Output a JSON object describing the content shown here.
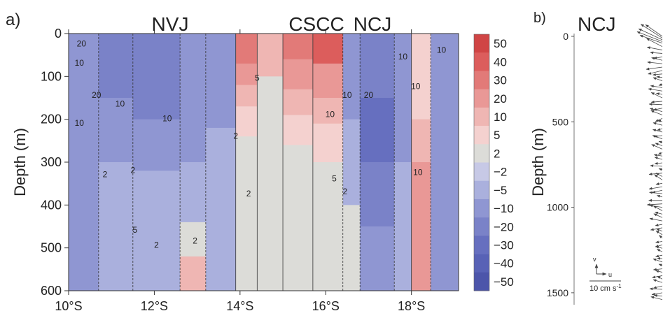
{
  "panel_a": {
    "label": "a)",
    "top_labels": [
      "NVJ",
      "CSCC",
      "NCJ"
    ],
    "colorbar_labels": [
      "50",
      "40",
      "30",
      "20",
      "10",
      "5",
      "2",
      "−2",
      "−5",
      "−10",
      "−20",
      "−30",
      "−40",
      "−50"
    ],
    "colorbar_colors": [
      "#d04545",
      "#dc5d5c",
      "#e27a78",
      "#e99896",
      "#efb6b3",
      "#f4d1cf",
      "#dcdcd8",
      "#c7c9e6",
      "#aab0dd",
      "#8f96d2",
      "#7a82c8",
      "#666fbf",
      "#5862b6",
      "#4c55aa"
    ],
    "contour_labels": [
      {
        "text": "20",
        "x": 10.3,
        "y": 30
      },
      {
        "text": "10",
        "x": 10.25,
        "y": 75
      },
      {
        "text": "20",
        "x": 10.65,
        "y": 150
      },
      {
        "text": "10",
        "x": 10.25,
        "y": 215
      },
      {
        "text": "10",
        "x": 11.2,
        "y": 170
      },
      {
        "text": "10",
        "x": 12.3,
        "y": 205
      },
      {
        "text": "2",
        "x": 10.85,
        "y": 335
      },
      {
        "text": "2",
        "x": 11.5,
        "y": 325
      },
      {
        "text": "5",
        "x": 11.55,
        "y": 465
      },
      {
        "text": "2",
        "x": 12.05,
        "y": 500
      },
      {
        "text": "2",
        "x": 12.95,
        "y": 490
      },
      {
        "text": "5",
        "x": 14.4,
        "y": 110
      },
      {
        "text": "2",
        "x": 13.9,
        "y": 245
      },
      {
        "text": "2",
        "x": 14.2,
        "y": 380
      },
      {
        "text": "5",
        "x": 16.2,
        "y": 345
      },
      {
        "text": "2",
        "x": 16.45,
        "y": 375
      },
      {
        "text": "10",
        "x": 16.5,
        "y": 150
      },
      {
        "text": "20",
        "x": 17.0,
        "y": 150
      },
      {
        "text": "10",
        "x": 16.1,
        "y": 195
      },
      {
        "text": "10",
        "x": 17.8,
        "y": 60
      },
      {
        "text": "10",
        "x": 18.1,
        "y": 130
      },
      {
        "text": "10",
        "x": 18.15,
        "y": 330
      },
      {
        "text": "10",
        "x": 18.7,
        "y": 45
      }
    ]
  },
  "panel_b": {
    "label": "b)",
    "top_label": "NCJ",
    "scale_v_label": "v",
    "scale_u_label": "u",
    "scale_text": "10 cm s",
    "scale_exponent": "-1"
  },
  "chart_data": [
    {
      "type": "heatmap",
      "panel": "a",
      "ylabel": "Depth (m)",
      "x_ticks": [
        "10°S",
        "12°S",
        "14°S",
        "16°S",
        "18°S"
      ],
      "x_tick_values": [
        10,
        12,
        14,
        16,
        18
      ],
      "y_ticks": [
        "0",
        "100",
        "200",
        "300",
        "400",
        "500",
        "600"
      ],
      "y_tick_values": [
        0,
        100,
        200,
        300,
        400,
        500,
        600
      ],
      "xlim": [
        10,
        19.1
      ],
      "ylim": [
        600,
        0
      ],
      "colorbar_levels": [
        50,
        40,
        30,
        20,
        10,
        5,
        2,
        -2,
        -5,
        -10,
        -20,
        -30,
        -40,
        -50
      ],
      "bands": [
        {
          "x0": 10.0,
          "x1": 10.7,
          "profile": [
            [
              0,
              -10
            ],
            [
              600,
              -10
            ]
          ]
        },
        {
          "x0": 10.7,
          "x1": 11.5,
          "profile": [
            [
              0,
              -20
            ],
            [
              150,
              -10
            ],
            [
              300,
              -5
            ],
            [
              600,
              -5
            ]
          ]
        },
        {
          "x0": 11.5,
          "x1": 12.6,
          "profile": [
            [
              0,
              -20
            ],
            [
              200,
              -10
            ],
            [
              320,
              -5
            ],
            [
              600,
              -5
            ]
          ]
        },
        {
          "x0": 12.6,
          "x1": 13.2,
          "profile": [
            [
              0,
              -10
            ],
            [
              300,
              -5
            ],
            [
              440,
              2
            ],
            [
              520,
              10
            ],
            [
              600,
              10
            ]
          ]
        },
        {
          "x0": 13.2,
          "x1": 13.9,
          "profile": [
            [
              0,
              -10
            ],
            [
              220,
              -5
            ],
            [
              450,
              -5
            ],
            [
              600,
              -2
            ]
          ]
        },
        {
          "x0": 13.9,
          "x1": 14.4,
          "profile": [
            [
              0,
              30
            ],
            [
              70,
              20
            ],
            [
              120,
              10
            ],
            [
              170,
              5
            ],
            [
              240,
              2
            ],
            [
              600,
              2
            ]
          ]
        },
        {
          "x0": 14.4,
          "x1": 15.0,
          "profile": [
            [
              0,
              10
            ],
            [
              100,
              2
            ],
            [
              330,
              2
            ],
            [
              600,
              -2
            ]
          ]
        },
        {
          "x0": 15.0,
          "x1": 15.7,
          "profile": [
            [
              0,
              30
            ],
            [
              60,
              20
            ],
            [
              130,
              10
            ],
            [
              190,
              5
            ],
            [
              260,
              2
            ],
            [
              600,
              2
            ]
          ]
        },
        {
          "x0": 15.7,
          "x1": 16.4,
          "profile": [
            [
              0,
              40
            ],
            [
              70,
              20
            ],
            [
              150,
              10
            ],
            [
              210,
              5
            ],
            [
              300,
              2
            ],
            [
              600,
              2
            ]
          ]
        },
        {
          "x0": 16.4,
          "x1": 16.8,
          "profile": [
            [
              0,
              -10
            ],
            [
              200,
              -5
            ],
            [
              400,
              2
            ],
            [
              600,
              2
            ]
          ]
        },
        {
          "x0": 16.8,
          "x1": 17.6,
          "profile": [
            [
              0,
              -20
            ],
            [
              150,
              -30
            ],
            [
              300,
              -20
            ],
            [
              450,
              -10
            ],
            [
              600,
              -10
            ]
          ]
        },
        {
          "x0": 17.6,
          "x1": 18.0,
          "profile": [
            [
              0,
              -10
            ],
            [
              300,
              -5
            ],
            [
              600,
              -5
            ]
          ]
        },
        {
          "x0": 18.0,
          "x1": 18.45,
          "profile": [
            [
              0,
              5
            ],
            [
              200,
              10
            ],
            [
              300,
              20
            ],
            [
              600,
              20
            ]
          ]
        },
        {
          "x0": 18.45,
          "x1": 19.1,
          "profile": [
            [
              0,
              -10
            ],
            [
              300,
              -10
            ],
            [
              600,
              -10
            ]
          ]
        }
      ]
    },
    {
      "type": "scatter",
      "panel": "b",
      "ylabel": "Depth (m)",
      "y_ticks": [
        "0",
        "500",
        "1000",
        "1500"
      ],
      "y_tick_values": [
        0,
        500,
        1000,
        1500
      ],
      "ylim": [
        1570,
        0
      ],
      "scale_arrow_cm_s": 10,
      "velocity_vectors": [
        {
          "depth": 0,
          "u": -5.3,
          "v": 3.7
        },
        {
          "depth": 10,
          "u": -6.8,
          "v": 4.4
        },
        {
          "depth": 20,
          "u": -7.5,
          "v": 3.5
        },
        {
          "depth": 30,
          "u": -8.0,
          "v": 3.1
        },
        {
          "depth": 40,
          "u": -7.1,
          "v": 2.5
        },
        {
          "depth": 60,
          "u": -5.0,
          "v": 2.6
        },
        {
          "depth": 80,
          "u": -4.8,
          "v": 0.9
        },
        {
          "depth": 100,
          "u": -3.8,
          "v": 0.3
        },
        {
          "depth": 120,
          "u": -2.7,
          "v": -0.5
        },
        {
          "depth": 140,
          "u": -3.4,
          "v": 0.8
        },
        {
          "depth": 160,
          "u": -4.7,
          "v": 0.5
        },
        {
          "depth": 180,
          "u": -5.1,
          "v": -0.7
        },
        {
          "depth": 200,
          "u": -4.5,
          "v": -1.1
        },
        {
          "depth": 220,
          "u": -3.0,
          "v": -0.3
        },
        {
          "depth": 240,
          "u": -1.8,
          "v": 0.2
        },
        {
          "depth": 260,
          "u": -2.9,
          "v": 1.0
        },
        {
          "depth": 280,
          "u": -1.1,
          "v": -0.4
        },
        {
          "depth": 300,
          "u": -3.7,
          "v": 0.6
        },
        {
          "depth": 320,
          "u": -4.4,
          "v": 0.7
        },
        {
          "depth": 340,
          "u": -1.9,
          "v": 0.4
        },
        {
          "depth": 360,
          "u": -3.5,
          "v": 1.7
        },
        {
          "depth": 380,
          "u": -3.5,
          "v": -0.3
        },
        {
          "depth": 400,
          "u": -4.2,
          "v": 0.2
        },
        {
          "depth": 420,
          "u": -2.8,
          "v": -0.6
        },
        {
          "depth": 440,
          "u": -3.9,
          "v": 1.0
        },
        {
          "depth": 460,
          "u": -3.6,
          "v": 1.4
        },
        {
          "depth": 480,
          "u": -2.2,
          "v": -1.0
        },
        {
          "depth": 500,
          "u": -1.4,
          "v": 0.5
        },
        {
          "depth": 520,
          "u": -2.9,
          "v": 0.8
        },
        {
          "depth": 540,
          "u": -1.6,
          "v": -0.5
        },
        {
          "depth": 560,
          "u": -3.0,
          "v": 0.8
        },
        {
          "depth": 580,
          "u": -2.5,
          "v": -0.4
        },
        {
          "depth": 600,
          "u": -3.1,
          "v": 1.1
        },
        {
          "depth": 620,
          "u": -1.1,
          "v": 0.3
        },
        {
          "depth": 640,
          "u": -2.2,
          "v": 0.8
        },
        {
          "depth": 660,
          "u": -3.4,
          "v": 1.5
        },
        {
          "depth": 680,
          "u": -1.3,
          "v": -0.6
        },
        {
          "depth": 700,
          "u": -2.6,
          "v": 0.4
        },
        {
          "depth": 720,
          "u": -2.4,
          "v": 0.7
        },
        {
          "depth": 740,
          "u": -2.4,
          "v": -0.3
        },
        {
          "depth": 760,
          "u": -3.8,
          "v": 0.2
        },
        {
          "depth": 780,
          "u": -1.1,
          "v": 0.3
        },
        {
          "depth": 800,
          "u": -4.2,
          "v": -0.4
        },
        {
          "depth": 820,
          "u": -2.0,
          "v": 1.1
        },
        {
          "depth": 840,
          "u": -2.5,
          "v": 1.7
        },
        {
          "depth": 860,
          "u": -2.0,
          "v": -0.3
        },
        {
          "depth": 880,
          "u": -4.2,
          "v": -0.7
        },
        {
          "depth": 900,
          "u": -3.2,
          "v": -0.8
        },
        {
          "depth": 920,
          "u": -4.1,
          "v": 0.4
        },
        {
          "depth": 940,
          "u": -1.7,
          "v": 0.5
        },
        {
          "depth": 960,
          "u": -4.3,
          "v": 0.0
        },
        {
          "depth": 980,
          "u": -4.8,
          "v": -0.3
        },
        {
          "depth": 1000,
          "u": -4.0,
          "v": 0.6
        },
        {
          "depth": 1020,
          "u": -2.8,
          "v": 1.5
        },
        {
          "depth": 1040,
          "u": -2.3,
          "v": 0.6
        },
        {
          "depth": 1060,
          "u": -2.7,
          "v": 1.2
        },
        {
          "depth": 1080,
          "u": -4.0,
          "v": 0.8
        },
        {
          "depth": 1100,
          "u": -2.2,
          "v": -0.4
        },
        {
          "depth": 1120,
          "u": -3.7,
          "v": -0.7
        },
        {
          "depth": 1140,
          "u": -1.9,
          "v": 0.8
        },
        {
          "depth": 1160,
          "u": -2.0,
          "v": 1.2
        },
        {
          "depth": 1180,
          "u": -1.0,
          "v": 0.9
        },
        {
          "depth": 1200,
          "u": -2.1,
          "v": -0.3
        },
        {
          "depth": 1220,
          "u": -2.2,
          "v": -0.6
        },
        {
          "depth": 1240,
          "u": -2.1,
          "v": 0.6
        },
        {
          "depth": 1260,
          "u": -1.7,
          "v": 0.8
        },
        {
          "depth": 1280,
          "u": -2.1,
          "v": -0.5
        },
        {
          "depth": 1300,
          "u": -1.6,
          "v": 0.1
        },
        {
          "depth": 1320,
          "u": -2.9,
          "v": 1.0
        },
        {
          "depth": 1340,
          "u": -1.1,
          "v": 0.4
        },
        {
          "depth": 1360,
          "u": -2.8,
          "v": -0.3
        },
        {
          "depth": 1380,
          "u": -2.1,
          "v": 0.5
        },
        {
          "depth": 1400,
          "u": -3.2,
          "v": -0.6
        },
        {
          "depth": 1420,
          "u": -1.6,
          "v": 0.9
        },
        {
          "depth": 1440,
          "u": -2.9,
          "v": 0.9
        },
        {
          "depth": 1460,
          "u": -2.8,
          "v": -0.7
        },
        {
          "depth": 1480,
          "u": -4.0,
          "v": 0.2
        },
        {
          "depth": 1500,
          "u": -3.3,
          "v": -0.6
        },
        {
          "depth": 1520,
          "u": -2.6,
          "v": 0.3
        },
        {
          "depth": 1540,
          "u": -3.6,
          "v": 0.9
        }
      ]
    }
  ]
}
